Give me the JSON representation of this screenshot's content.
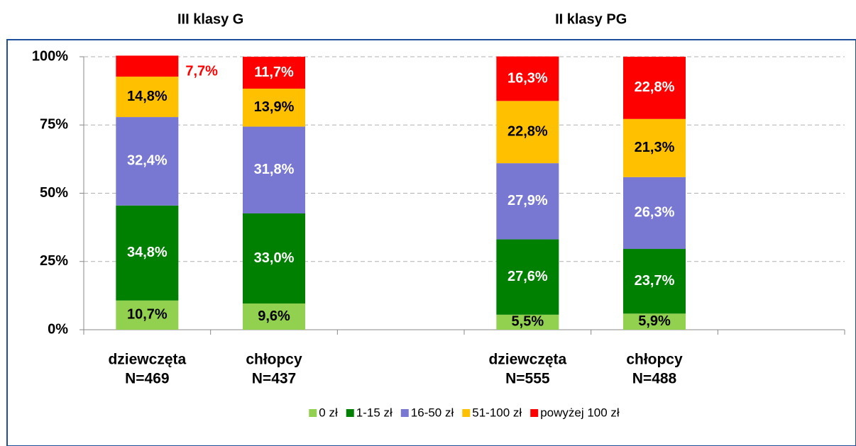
{
  "chart_data": {
    "type": "stacked_bar",
    "groups": [
      "III klasy G",
      "II klasy PG"
    ],
    "categories": [
      [
        "dziewczęta",
        "N=469"
      ],
      [
        "chłopcy",
        "N=437"
      ],
      null,
      [
        "dziewczęta",
        "N=555"
      ],
      [
        "chłopcy",
        "N=488"
      ],
      null
    ],
    "series": [
      {
        "name": "0 zł",
        "color": "#92d050",
        "label_color": "#000000",
        "values": [
          10.7,
          9.6,
          null,
          5.5,
          5.9,
          null
        ],
        "value_labels": [
          "10,7%",
          "9,6%",
          null,
          "5,5%",
          "5,9%",
          null
        ]
      },
      {
        "name": "1-15 zł",
        "color": "#008000",
        "label_color": "#ffffff",
        "values": [
          34.8,
          33.0,
          null,
          27.6,
          23.7,
          null
        ],
        "value_labels": [
          "34,8%",
          "33,0%",
          null,
          "27,6%",
          "23,7%",
          null
        ]
      },
      {
        "name": "16-50 zł",
        "color": "#7878d2",
        "label_color": "#ffffff",
        "values": [
          32.4,
          31.8,
          null,
          27.9,
          26.3,
          null
        ],
        "value_labels": [
          "32,4%",
          "31,8%",
          null,
          "27,9%",
          "26,3%",
          null
        ]
      },
      {
        "name": "51-100 zł",
        "color": "#ffc000",
        "label_color": "#000000",
        "values": [
          14.8,
          13.9,
          null,
          22.8,
          21.3,
          null
        ],
        "value_labels": [
          "14,8%",
          "13,9%",
          null,
          "22,8%",
          "21,3%",
          null
        ]
      },
      {
        "name": "powyżej 100 zł",
        "color": "#ff0000",
        "label_color": "#ffffff",
        "values": [
          7.7,
          11.7,
          null,
          16.3,
          22.8,
          null
        ],
        "value_labels": [
          "7,7%",
          "11,7%",
          null,
          "16,3%",
          "22,8%",
          null
        ]
      }
    ],
    "ylim": [
      0,
      100
    ],
    "yticks": [
      {
        "value": 0,
        "label": "0%"
      },
      {
        "value": 25,
        "label": "25%"
      },
      {
        "value": 50,
        "label": "50%"
      },
      {
        "value": 75,
        "label": "75%"
      },
      {
        "value": 100,
        "label": "100%"
      }
    ],
    "grid": true,
    "legend": "bottom"
  }
}
